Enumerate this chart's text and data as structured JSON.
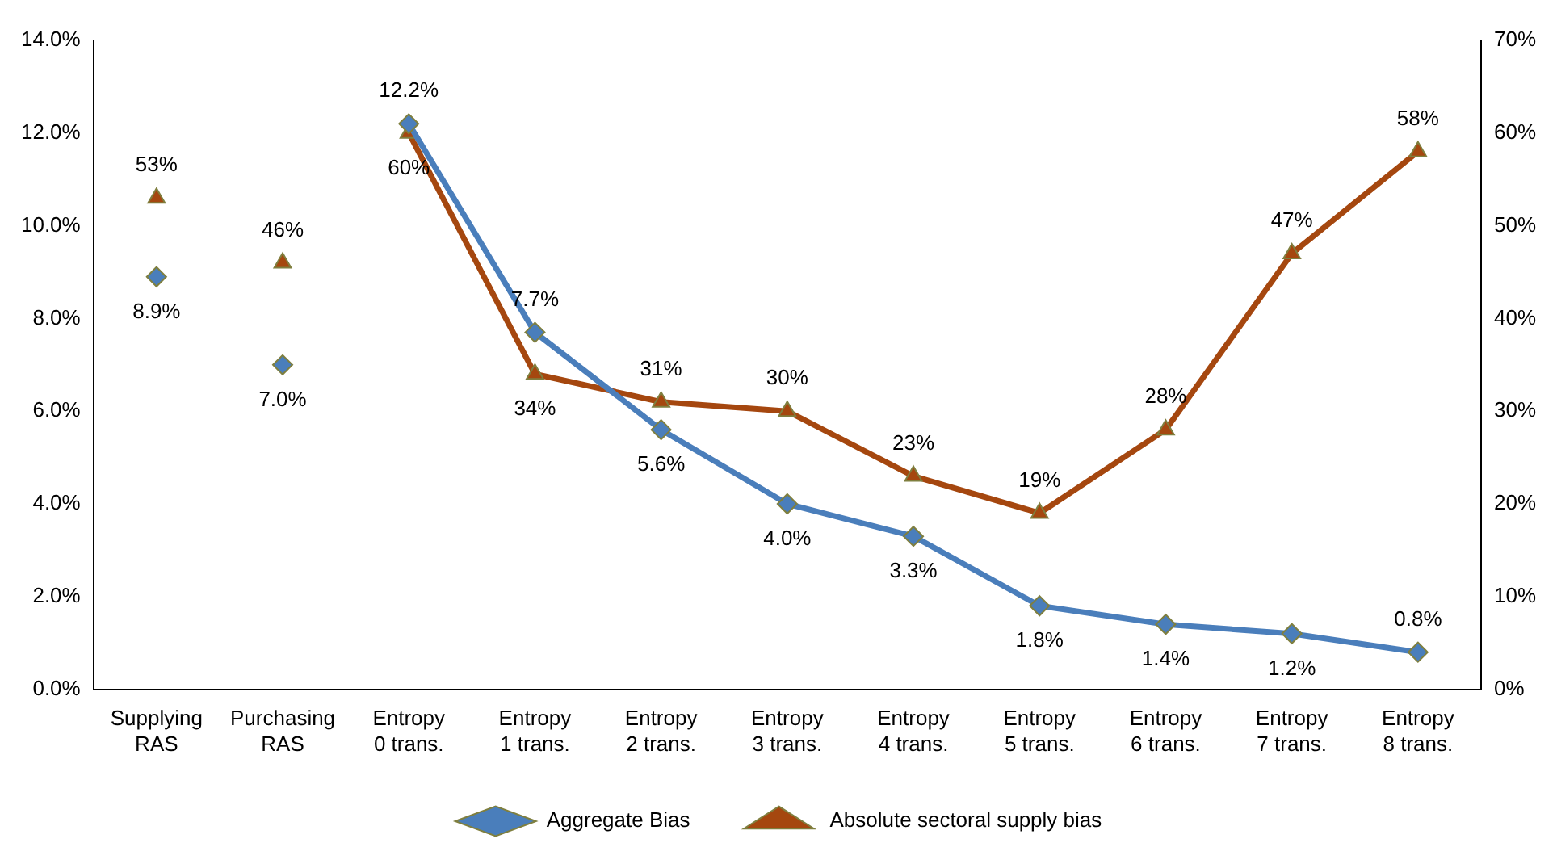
{
  "chart_data": {
    "type": "line",
    "categories": [
      "Supplying RAS",
      "Purchasing RAS",
      "Entropy 0 trans.",
      "Entropy 1 trans.",
      "Entropy 2 trans.",
      "Entropy 3 trans.",
      "Entropy 4 trans.",
      "Entropy 5 trans.",
      "Entropy 6 trans.",
      "Entropy 7 trans.",
      "Entropy 8 trans."
    ],
    "series": [
      {
        "name": "Aggregate Bias",
        "type": "line",
        "color": "#4a7ebb",
        "marker": "diamond",
        "values": [
          null,
          null,
          12.2,
          7.7,
          5.6,
          4.0,
          3.3,
          1.8,
          1.4,
          1.2,
          0.8
        ],
        "value_labels": [
          null,
          null,
          "12.2%",
          "7.7%",
          "5.6%",
          "4.0%",
          "3.3%",
          "1.8%",
          "1.4%",
          "1.2%",
          "0.8%"
        ]
      },
      {
        "type": "scatter",
        "color": "#4a7ebb",
        "marker": "diamond",
        "x": [
          "Supplying RAS",
          "Purchasing RAS"
        ],
        "values": [
          8.9,
          7.0
        ],
        "value_labels": [
          "8.9%",
          "7.0%"
        ]
      },
      {
        "name": "Absolute sectoral supply bias",
        "type": "line",
        "axis": "y2",
        "color": "#a5470f",
        "marker": "triangle",
        "values": [
          null,
          null,
          60,
          34,
          31,
          30,
          23,
          19,
          28,
          47,
          58
        ],
        "value_labels": [
          null,
          null,
          "60%",
          "34%",
          "31%",
          "30%",
          "23%",
          "19%",
          "28%",
          "47%",
          "58%"
        ]
      },
      {
        "type": "scatter",
        "axis": "y2",
        "color": "#a5470f",
        "marker": "triangle",
        "x": [
          "Supplying RAS",
          "Purchasing RAS"
        ],
        "values": [
          53,
          46
        ],
        "value_labels": [
          "53%",
          "46%"
        ]
      }
    ],
    "ylim": [
      0,
      14
    ],
    "yticks": [
      {
        "value": 0,
        "label": "0.0%"
      },
      {
        "value": 2,
        "label": "2.0%"
      },
      {
        "value": 4,
        "label": "4.0%"
      },
      {
        "value": 6,
        "label": "6.0%"
      },
      {
        "value": 8,
        "label": "8.0%"
      },
      {
        "value": 10,
        "label": "10.0%"
      },
      {
        "value": 12,
        "label": "12.0%"
      },
      {
        "value": 14,
        "label": "14.0%"
      }
    ],
    "y2lim": [
      0,
      70
    ],
    "y2ticks": [
      {
        "value": 0,
        "label": "0%"
      },
      {
        "value": 10,
        "label": "10%"
      },
      {
        "value": 20,
        "label": "20%"
      },
      {
        "value": 30,
        "label": "30%"
      },
      {
        "value": 40,
        "label": "40%"
      },
      {
        "value": 50,
        "label": "50%"
      },
      {
        "value": 60,
        "label": "60%"
      },
      {
        "value": 70,
        "label": "70%"
      }
    ],
    "grid": false,
    "legend": "bottom",
    "line_style": "solid"
  }
}
